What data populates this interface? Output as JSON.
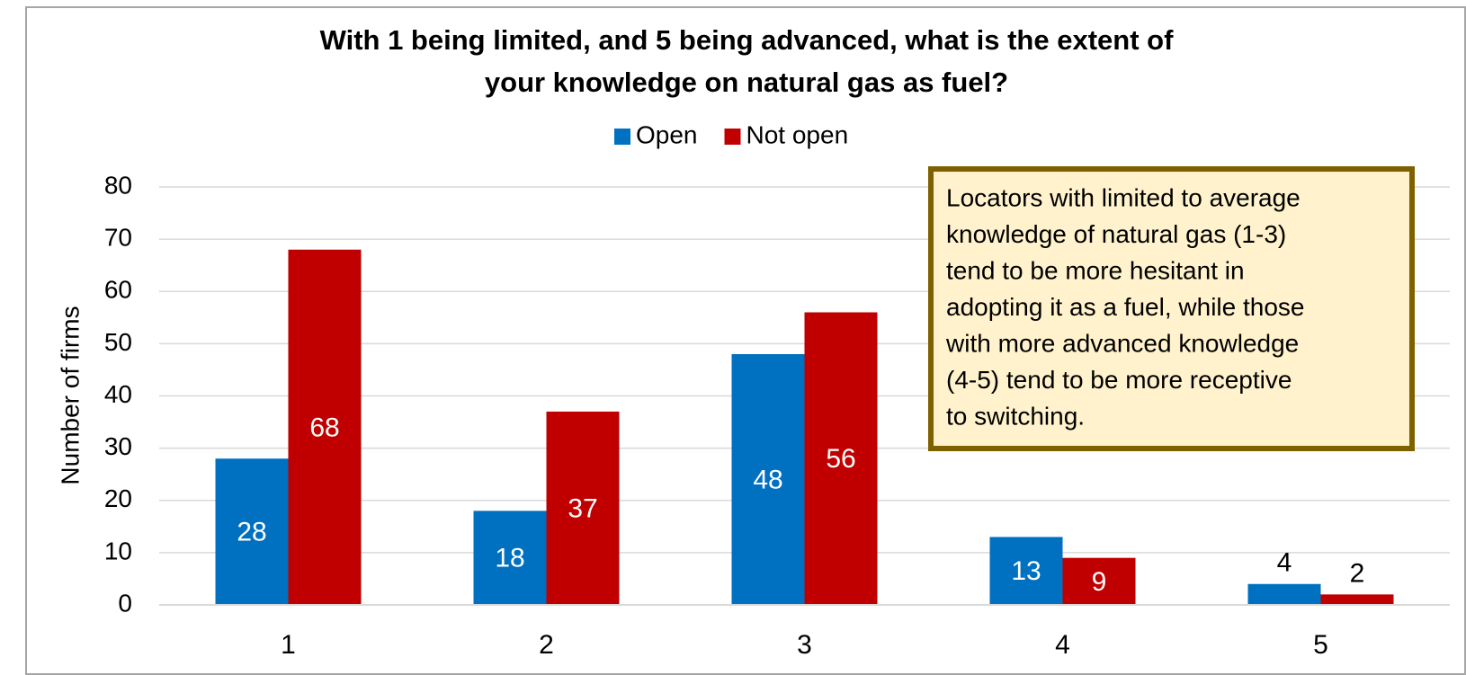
{
  "chart_data": {
    "type": "bar",
    "title": [
      "With 1 being limited, and 5 being advanced, what is the extent of",
      "your knowledge on natural gas as fuel?"
    ],
    "y_label": "Number of firms",
    "categories": [
      "1",
      "2",
      "3",
      "4",
      "5"
    ],
    "series": [
      {
        "name": "Open",
        "color": "#0070c0",
        "values": [
          28,
          18,
          48,
          13,
          4
        ]
      },
      {
        "name": "Not open",
        "color": "#c00000",
        "values": [
          68,
          37,
          56,
          9,
          2
        ]
      }
    ],
    "ylim": [
      0,
      80
    ],
    "yticks": [
      0,
      10,
      20,
      30,
      40,
      50,
      60,
      70,
      80
    ],
    "grid": true,
    "legend": "top",
    "annotation": [
      "Locators with limited to average",
      "knowledge of natural gas (1-3)",
      "tend to be more hesitant in",
      "adopting it as a fuel, while those",
      "with more advanced knowledge",
      "(4-5) tend to be more receptive",
      "to switching."
    ]
  }
}
